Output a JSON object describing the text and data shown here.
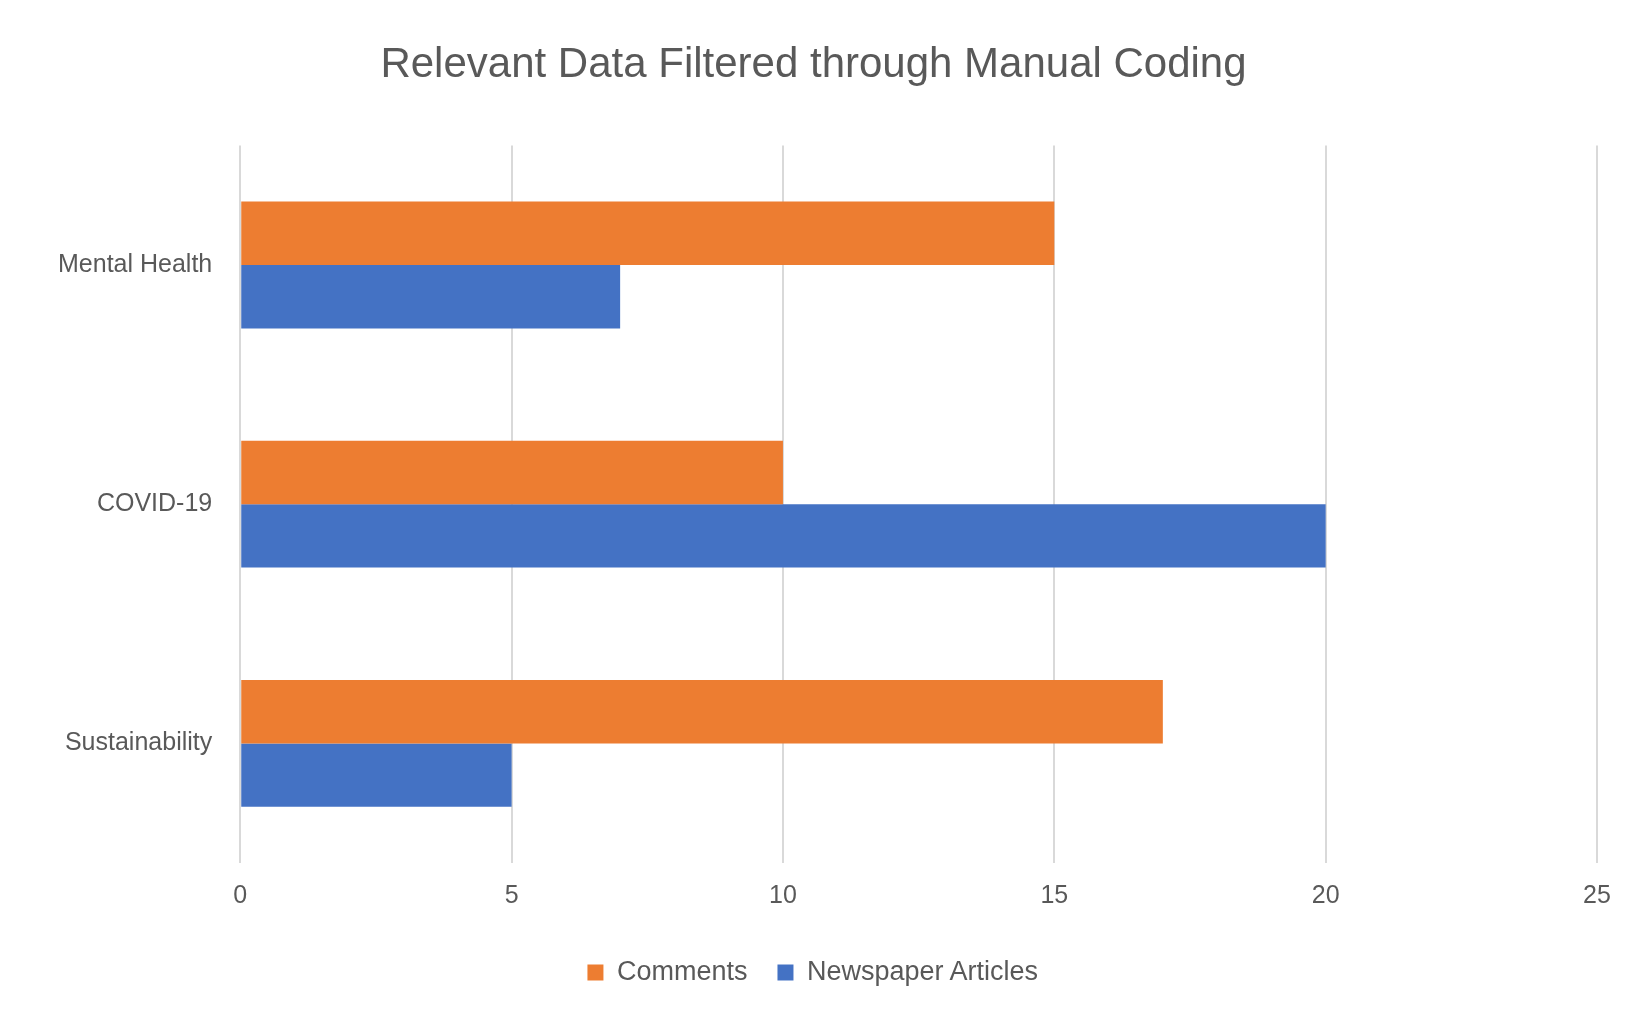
{
  "chart_data": {
    "type": "bar",
    "orientation": "horizontal",
    "title": "Relevant Data Filtered through Manual Coding",
    "categories": [
      "Mental Health",
      "COVID-19",
      "Sustainability"
    ],
    "series": [
      {
        "name": "Comments",
        "color": "#ed7d31",
        "values": [
          15,
          10,
          17
        ]
      },
      {
        "name": "Newspaper Articles",
        "color": "#4472c4",
        "values": [
          7,
          20,
          5
        ]
      }
    ],
    "xlim": [
      0,
      25
    ],
    "xticks": [
      0,
      5,
      10,
      15,
      20,
      25
    ],
    "grid": "x",
    "legend": "bottom"
  }
}
